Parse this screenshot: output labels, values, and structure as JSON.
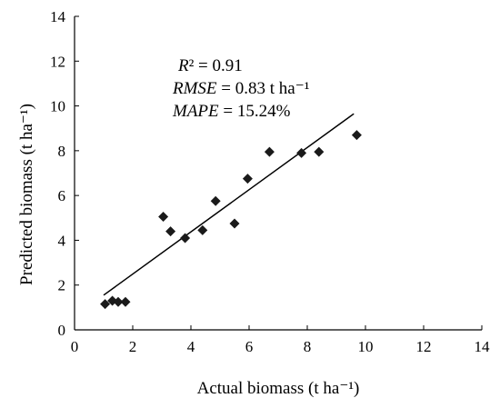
{
  "chart_data": {
    "type": "scatter",
    "xlabel": "Actual biomass (t ha⁻¹)",
    "ylabel": "Predicted biomass (t ha⁻¹)",
    "xlim": [
      0,
      14
    ],
    "ylim": [
      0,
      14
    ],
    "xticks": [
      0,
      2,
      4,
      6,
      8,
      10,
      12,
      14
    ],
    "yticks": [
      0,
      2,
      4,
      6,
      8,
      10,
      12,
      14
    ],
    "grid": false,
    "series": [
      {
        "marker": "diamond",
        "color": "#1a1a1a",
        "points": [
          {
            "x": 1.05,
            "y": 1.15
          },
          {
            "x": 1.3,
            "y": 1.3
          },
          {
            "x": 1.5,
            "y": 1.25
          },
          {
            "x": 1.75,
            "y": 1.25
          },
          {
            "x": 3.05,
            "y": 5.05
          },
          {
            "x": 3.3,
            "y": 4.4
          },
          {
            "x": 3.8,
            "y": 4.1
          },
          {
            "x": 4.4,
            "y": 4.45
          },
          {
            "x": 4.85,
            "y": 5.75
          },
          {
            "x": 5.5,
            "y": 4.75
          },
          {
            "x": 5.95,
            "y": 6.75
          },
          {
            "x": 6.7,
            "y": 7.95
          },
          {
            "x": 7.8,
            "y": 7.9
          },
          {
            "x": 8.4,
            "y": 7.95
          },
          {
            "x": 9.7,
            "y": 8.7
          }
        ]
      }
    ],
    "trendline": {
      "x": [
        1.0,
        9.6
      ],
      "y": [
        1.55,
        9.65
      ]
    },
    "annotations": [
      {
        "parts": [
          {
            "t": "R",
            "italic": true
          },
          {
            "t": "² = 0.91",
            "italic": false
          }
        ]
      },
      {
        "parts": [
          {
            "t": "RMSE",
            "italic": true
          },
          {
            "t": " = 0.83 t ha⁻¹",
            "italic": false
          }
        ]
      },
      {
        "parts": [
          {
            "t": "MAPE",
            "italic": true
          },
          {
            "t": " = 15.24%",
            "italic": false
          }
        ]
      }
    ]
  }
}
